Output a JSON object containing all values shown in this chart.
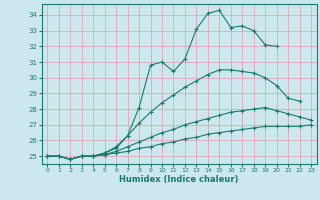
{
  "xlabel": "Humidex (Indice chaleur)",
  "bg_color": "#cce8ee",
  "line_color": "#1a7a6e",
  "grid_color": "#ddaaaa",
  "xlim": [
    -0.5,
    23.5
  ],
  "ylim": [
    24.5,
    34.7
  ],
  "xticks": [
    0,
    1,
    2,
    3,
    4,
    5,
    6,
    7,
    8,
    9,
    10,
    11,
    12,
    13,
    14,
    15,
    16,
    17,
    18,
    19,
    20,
    21,
    22,
    23
  ],
  "yticks": [
    25,
    26,
    27,
    28,
    29,
    30,
    31,
    32,
    33,
    34
  ],
  "lines": [
    {
      "x": [
        0,
        1,
        2,
        3,
        4,
        5,
        6,
        7,
        8,
        9,
        10,
        11,
        12,
        13,
        14,
        15,
        16,
        17,
        18,
        19,
        20
      ],
      "y": [
        25,
        25,
        24.8,
        25,
        25,
        25.2,
        25.5,
        26.3,
        28.1,
        30.8,
        31.0,
        30.4,
        31.2,
        33.1,
        34.1,
        34.3,
        33.2,
        33.3,
        33.0,
        32.1,
        32.0
      ]
    },
    {
      "x": [
        0,
        1,
        2,
        3,
        4,
        5,
        6,
        7,
        8,
        9,
        10,
        11,
        12,
        13,
        14,
        15,
        16,
        17,
        18,
        19,
        20,
        21,
        22
      ],
      "y": [
        25,
        25,
        24.8,
        25,
        25,
        25.2,
        25.6,
        26.3,
        27.1,
        27.8,
        28.4,
        28.9,
        29.4,
        29.8,
        30.2,
        30.5,
        30.5,
        30.4,
        30.3,
        30.0,
        29.5,
        28.7,
        28.5
      ]
    },
    {
      "x": [
        0,
        1,
        2,
        3,
        4,
        5,
        6,
        7,
        8,
        9,
        10,
        11,
        12,
        13,
        14,
        15,
        16,
        17,
        18,
        19,
        20,
        21,
        22,
        23
      ],
      "y": [
        25,
        25,
        24.8,
        25,
        25,
        25.1,
        25.3,
        25.6,
        25.9,
        26.2,
        26.5,
        26.7,
        27.0,
        27.2,
        27.4,
        27.6,
        27.8,
        27.9,
        28.0,
        28.1,
        27.9,
        27.7,
        27.5,
        27.3
      ]
    },
    {
      "x": [
        0,
        1,
        2,
        3,
        4,
        5,
        6,
        7,
        8,
        9,
        10,
        11,
        12,
        13,
        14,
        15,
        16,
        17,
        18,
        19,
        20,
        21,
        22,
        23
      ],
      "y": [
        25,
        25,
        24.8,
        25,
        25,
        25.1,
        25.2,
        25.3,
        25.5,
        25.6,
        25.8,
        25.9,
        26.1,
        26.2,
        26.4,
        26.5,
        26.6,
        26.7,
        26.8,
        26.9,
        26.9,
        26.9,
        26.9,
        27.0
      ]
    }
  ]
}
